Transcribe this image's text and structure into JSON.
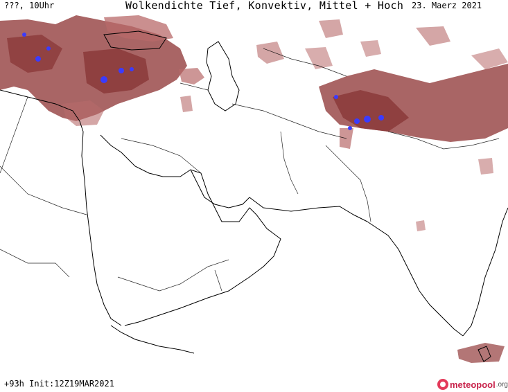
{
  "header": {
    "left": "???, 10Uhr",
    "title": "Wolkendichte  Tief, Konvektiv, Mittel + Hoch",
    "date": "23. Maerz 2021"
  },
  "footer": {
    "run": "+93h Init:12Z19MAR2021",
    "brand": "meteopool",
    "brand_suffix": ".org"
  },
  "colors": {
    "cloud_dense": "#8b3a3a",
    "cloud_light": "#b86a6a",
    "convective": "#3b3bff",
    "coastline": "#000000",
    "border": "#000000",
    "background": "#ffffff"
  }
}
